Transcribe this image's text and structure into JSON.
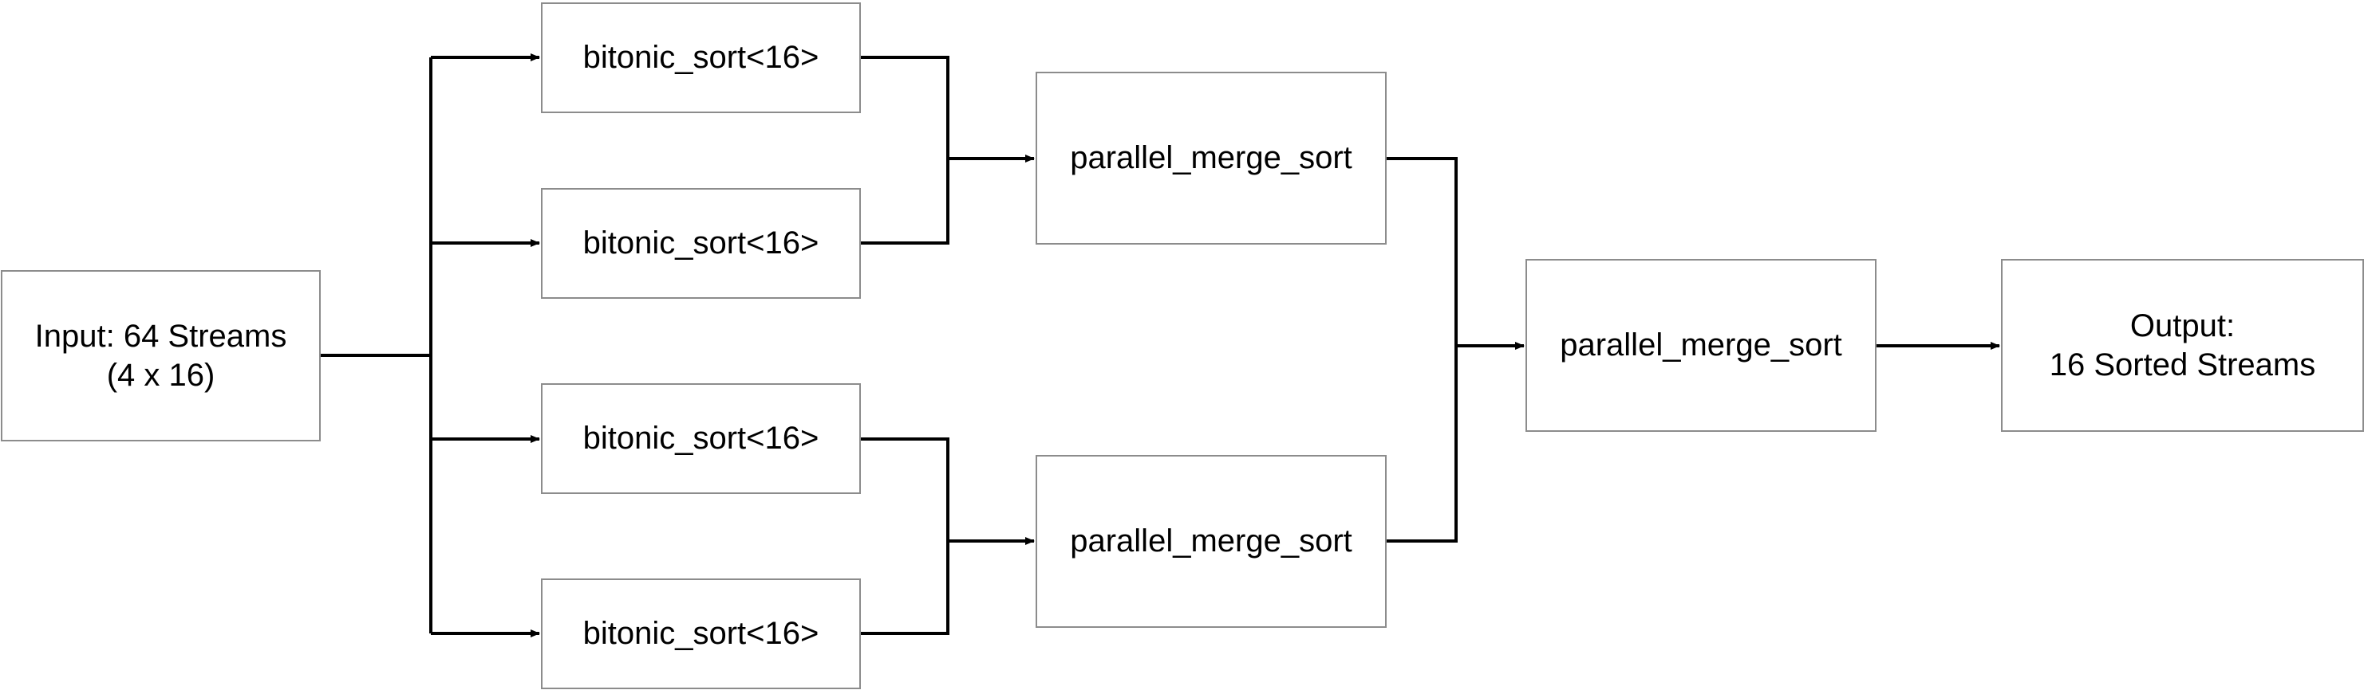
{
  "diagram": {
    "input": {
      "line1": "Input: 64 Streams",
      "line2": "(4 x 16)"
    },
    "sorters": [
      {
        "label": "bitonic_sort<16>"
      },
      {
        "label": "bitonic_sort<16>"
      },
      {
        "label": "bitonic_sort<16>"
      },
      {
        "label": "bitonic_sort<16>"
      }
    ],
    "mergers": [
      {
        "label": "parallel_merge_sort"
      },
      {
        "label": "parallel_merge_sort"
      }
    ],
    "final_merger": {
      "label": "parallel_merge_sort"
    },
    "output": {
      "line1": "Output:",
      "line2": "16 Sorted Streams"
    },
    "colors": {
      "box_border": "#8c8c8c",
      "connector": "#000000",
      "text": "#000000"
    }
  }
}
